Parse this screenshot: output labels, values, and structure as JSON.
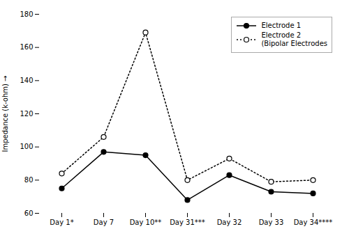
{
  "chart_data": {
    "type": "line",
    "categories": [
      "Day 1*",
      "Day 7",
      "Day 10**",
      "Day 31***",
      "Day 32",
      "Day 33",
      "Day 34****"
    ],
    "series": [
      {
        "name": "Electrode 1",
        "color": "#000000",
        "values": [
          75,
          97,
          95,
          68,
          83,
          73,
          72
        ],
        "line_style": "solid",
        "marker": "filled_circle"
      },
      {
        "name": "Electrode 2\n(Bipolar Electrodes",
        "color": "#000000",
        "values": [
          84,
          106,
          169,
          80,
          93,
          79,
          80
        ],
        "line_style": "dotted",
        "marker": "open_circle"
      }
    ],
    "ylabel": "Impedance (k-ohm)",
    "ylim": [
      60,
      180
    ],
    "yticks": [
      60,
      80,
      100,
      120,
      140,
      160,
      180
    ],
    "legend": "upper right"
  }
}
